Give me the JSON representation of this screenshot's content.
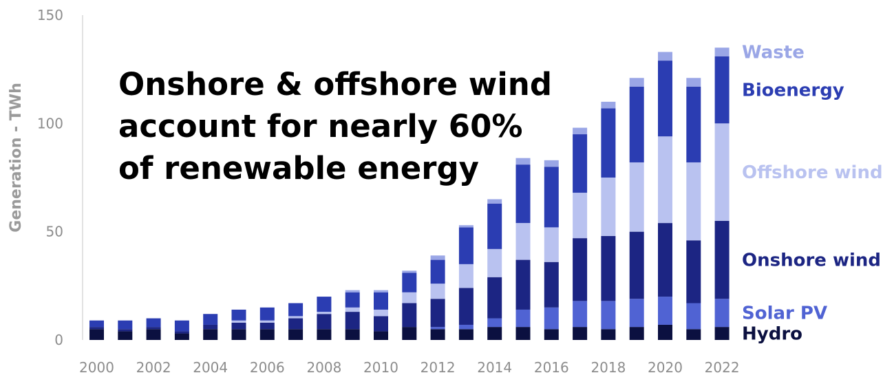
{
  "chart_data": {
    "type": "bar",
    "stacked": true,
    "title": "",
    "annotation_lines": [
      "Onshore & offshore wind",
      "account for nearly 60%",
      "of renewable energy"
    ],
    "ylabel": "Generation - TWh",
    "xlabel": "",
    "ylim": [
      0,
      150
    ],
    "y_ticks": [
      0,
      50,
      100,
      150
    ],
    "x_tick_labels": [
      "2000",
      "2002",
      "2004",
      "2006",
      "2008",
      "2010",
      "2012",
      "2014",
      "2016",
      "2018",
      "2020",
      "2022"
    ],
    "categories": [
      "2000",
      "2001",
      "2002",
      "2003",
      "2004",
      "2005",
      "2006",
      "2007",
      "2008",
      "2009",
      "2010",
      "2011",
      "2012",
      "2013",
      "2014",
      "2015",
      "2016",
      "2017",
      "2018",
      "2019",
      "2020",
      "2021",
      "2022"
    ],
    "grid": false,
    "legend_placement": "right, labels aligned with the last bar",
    "series": [
      {
        "name": "Hydro",
        "color": "#0b1040",
        "values": [
          5,
          4,
          5,
          3,
          5,
          5,
          5,
          5,
          5,
          5,
          4,
          6,
          5,
          5,
          6,
          6,
          5,
          6,
          5,
          6,
          7,
          5,
          6
        ]
      },
      {
        "name": "Solar PV",
        "color": "#5063d3",
        "values": [
          0,
          0,
          0,
          0,
          0,
          0,
          0,
          0,
          0,
          0,
          0,
          0,
          1,
          2,
          4,
          8,
          10,
          12,
          13,
          13,
          13,
          12,
          13
        ]
      },
      {
        "name": "Onshore wind",
        "color": "#1c2583",
        "values": [
          1,
          1,
          1,
          1,
          2,
          3,
          3,
          5,
          7,
          8,
          7,
          11,
          13,
          17,
          19,
          23,
          21,
          29,
          30,
          31,
          34,
          29,
          36
        ]
      },
      {
        "name": "Offshore wind",
        "color": "#b9c2f0",
        "values": [
          0,
          0,
          0,
          0,
          0,
          1,
          1,
          1,
          1,
          2,
          3,
          5,
          7,
          11,
          13,
          17,
          16,
          21,
          27,
          32,
          40,
          36,
          45
        ]
      },
      {
        "name": "Bioenergy",
        "color": "#2b3db2",
        "values": [
          3,
          4,
          4,
          5,
          5,
          5,
          6,
          6,
          7,
          7,
          8,
          9,
          11,
          17,
          21,
          27,
          28,
          27,
          32,
          35,
          35,
          35,
          31
        ]
      },
      {
        "name": "Waste",
        "color": "#9aa6e6",
        "values": [
          0,
          0,
          0,
          0,
          0,
          0,
          0,
          0,
          0,
          1,
          1,
          1,
          2,
          1,
          2,
          3,
          3,
          3,
          3,
          4,
          4,
          4,
          4
        ]
      }
    ],
    "legend_label_colors": {
      "Waste": "#9aa6e6",
      "Bioenergy": "#2b3db2",
      "Offshore wind": "#b9c2f0",
      "Onshore wind": "#1c2583",
      "Solar PV": "#5063d3",
      "Hydro": "#0b1040"
    }
  }
}
